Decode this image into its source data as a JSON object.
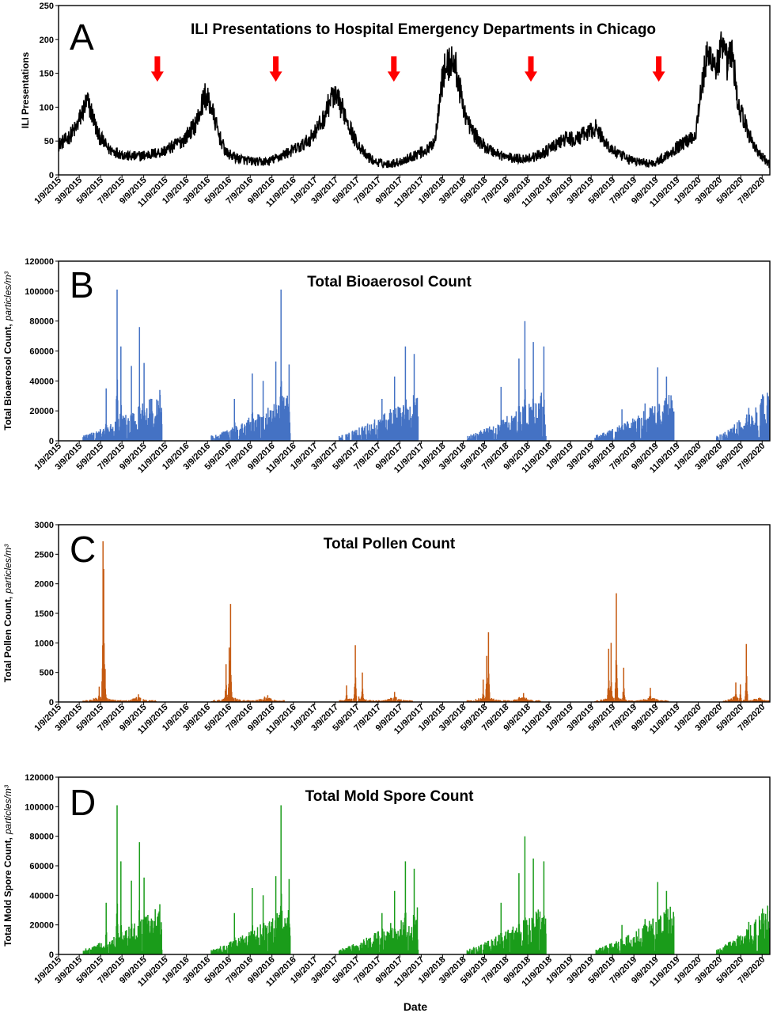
{
  "figure": {
    "xlabel": "Date",
    "date_ticks": [
      "1/9/2015",
      "3/9/2015",
      "5/9/2015",
      "7/9/2015",
      "9/9/2015",
      "11/9/2015",
      "1/9/2016",
      "3/9/2016",
      "5/9/2016",
      "7/9/2016",
      "9/9/2016",
      "11/9/2016",
      "1/9/2017",
      "3/9/2017",
      "5/9/2017",
      "7/9/2017",
      "9/9/2017",
      "11/9/2017",
      "1/9/2018",
      "3/9/2018",
      "5/9/2018",
      "7/9/2018",
      "9/9/2018",
      "11/9/2018",
      "1/9/2019",
      "3/9/2019",
      "5/9/2019",
      "7/9/2019",
      "9/9/2019",
      "11/9/2019",
      "1/9/2020",
      "3/9/2020",
      "5/9/2020",
      "7/9/2020"
    ]
  },
  "chart_data": [
    {
      "panel": "A",
      "type": "line",
      "title": "ILI Presentations to Hospital Emergency Departments in Chicago",
      "ylabel": "ILI Presentations",
      "ylabel_unit": "",
      "yticks": [
        "0",
        "50",
        "100",
        "150",
        "200",
        "250"
      ],
      "ylim": [
        0,
        250
      ],
      "xlim": [
        "2015-01-09",
        "2020-07-31"
      ],
      "color": "#000000",
      "grid": false,
      "series": [
        {
          "x": [
            "2015-01-09",
            "2015-02-01",
            "2015-03-01",
            "2015-03-20",
            "2015-04-01",
            "2015-04-15",
            "2015-05-01",
            "2015-06-01",
            "2015-07-01",
            "2015-08-01",
            "2015-09-01",
            "2015-10-01",
            "2015-11-01",
            "2015-12-01",
            "2016-01-01",
            "2016-01-20",
            "2016-02-01",
            "2016-02-15",
            "2016-03-01",
            "2016-03-20",
            "2016-04-10",
            "2016-05-01",
            "2016-06-01",
            "2016-07-01",
            "2016-08-01",
            "2016-09-01",
            "2016-10-01",
            "2016-11-01",
            "2016-12-01",
            "2016-12-25",
            "2017-01-15",
            "2017-02-01",
            "2017-02-15",
            "2017-03-01",
            "2017-03-20",
            "2017-04-10",
            "2017-05-01",
            "2017-06-01",
            "2017-07-01",
            "2017-08-01",
            "2017-09-01",
            "2017-10-01",
            "2017-11-01",
            "2017-12-01",
            "2017-12-20",
            "2018-01-01",
            "2018-01-15",
            "2018-02-01",
            "2018-02-15",
            "2018-03-01",
            "2018-03-20",
            "2018-04-10",
            "2018-05-01",
            "2018-06-01",
            "2018-07-01",
            "2018-08-01",
            "2018-09-01",
            "2018-10-01",
            "2018-11-01",
            "2018-12-01",
            "2019-01-01",
            "2019-01-20",
            "2019-02-10",
            "2019-03-01",
            "2019-03-20",
            "2019-04-10",
            "2019-05-01",
            "2019-06-01",
            "2019-07-01",
            "2019-08-01",
            "2019-09-01",
            "2019-10-01",
            "2019-11-01",
            "2019-12-01",
            "2020-01-01",
            "2020-01-15",
            "2020-02-01",
            "2020-02-15",
            "2020-03-01",
            "2020-03-15",
            "2020-04-01",
            "2020-04-15",
            "2020-05-01",
            "2020-06-01",
            "2020-07-01",
            "2020-07-31"
          ],
          "y": [
            45,
            52,
            70,
            95,
            108,
            90,
            60,
            38,
            32,
            27,
            28,
            31,
            34,
            42,
            52,
            65,
            72,
            90,
            118,
            100,
            60,
            32,
            25,
            21,
            19,
            20,
            27,
            35,
            42,
            52,
            68,
            80,
            100,
            118,
            105,
            85,
            55,
            30,
            19,
            16,
            18,
            24,
            32,
            38,
            55,
            120,
            155,
            168,
            160,
            120,
            80,
            60,
            45,
            35,
            28,
            24,
            24,
            27,
            35,
            45,
            55,
            50,
            58,
            62,
            70,
            55,
            40,
            28,
            22,
            18,
            17,
            25,
            38,
            48,
            60,
            120,
            170,
            175,
            160,
            185,
            165,
            180,
            105,
            60,
            30,
            15
          ]
        }
      ],
      "annotations": {
        "type": "arrow-down",
        "color": "#ff0000",
        "x": [
          "2015-10-18",
          "2016-09-20",
          "2017-08-23",
          "2018-09-18",
          "2019-09-18"
        ],
        "y": 175
      }
    },
    {
      "panel": "B",
      "type": "bar",
      "title": "Total Bioaerosol Count",
      "ylabel": "Total Bioaerosol Count,",
      "ylabel_unit": "particles/m³",
      "yticks": [
        "0",
        "20000",
        "40000",
        "60000",
        "80000",
        "100000",
        "120000"
      ],
      "ylim": [
        0,
        120000
      ],
      "xlim": [
        "2015-01-09",
        "2020-07-31"
      ],
      "color": "#4472c4",
      "grid": false,
      "seasons": [
        {
          "start": "2015-03-20",
          "end": "2015-10-31",
          "peaks": [
            {
              "date": "2015-05-25",
              "value": 35000
            },
            {
              "date": "2015-06-25",
              "value": 101000
            },
            {
              "date": "2015-07-06",
              "value": 63000
            },
            {
              "date": "2015-08-05",
              "value": 50000
            },
            {
              "date": "2015-08-28",
              "value": 76000
            },
            {
              "date": "2015-09-10",
              "value": 52000
            },
            {
              "date": "2015-10-25",
              "value": 34000
            }
          ]
        },
        {
          "start": "2016-03-20",
          "end": "2016-10-31",
          "peaks": [
            {
              "date": "2016-05-25",
              "value": 28000
            },
            {
              "date": "2016-07-15",
              "value": 45000
            },
            {
              "date": "2016-08-15",
              "value": 40000
            },
            {
              "date": "2016-09-20",
              "value": 53000
            },
            {
              "date": "2016-10-05",
              "value": 101000
            },
            {
              "date": "2016-10-28",
              "value": 51000
            }
          ]
        },
        {
          "start": "2017-03-20",
          "end": "2017-10-31",
          "peaks": [
            {
              "date": "2017-07-20",
              "value": 28000
            },
            {
              "date": "2017-08-25",
              "value": 43000
            },
            {
              "date": "2017-09-25",
              "value": 63000
            },
            {
              "date": "2017-10-20",
              "value": 58000
            }
          ]
        },
        {
          "start": "2018-03-20",
          "end": "2018-10-31",
          "peaks": [
            {
              "date": "2018-06-25",
              "value": 36000
            },
            {
              "date": "2018-08-15",
              "value": 55000
            },
            {
              "date": "2018-09-01",
              "value": 80000
            },
            {
              "date": "2018-09-25",
              "value": 66000
            },
            {
              "date": "2018-10-25",
              "value": 63000
            }
          ]
        },
        {
          "start": "2019-03-20",
          "end": "2019-10-31",
          "peaks": [
            {
              "date": "2019-06-05",
              "value": 21000
            },
            {
              "date": "2019-08-10",
              "value": 25000
            },
            {
              "date": "2019-09-15",
              "value": 49000
            },
            {
              "date": "2019-10-10",
              "value": 43000
            }
          ]
        },
        {
          "start": "2020-03-01",
          "end": "2020-07-31",
          "peaks": [
            {
              "date": "2020-06-01",
              "value": 22000
            },
            {
              "date": "2020-07-10",
              "value": 31000
            },
            {
              "date": "2020-07-25",
              "value": 25000
            }
          ]
        }
      ]
    },
    {
      "panel": "C",
      "type": "bar",
      "title": "Total Pollen Count",
      "ylabel": "Total Pollen Count,",
      "ylabel_unit": "particles/m³",
      "yticks": [
        "0",
        "500",
        "1000",
        "1500",
        "2000",
        "2500",
        "3000"
      ],
      "ylim": [
        0,
        3000
      ],
      "xlim": [
        "2015-01-09",
        "2020-07-31"
      ],
      "color": "#c55a11",
      "grid": false,
      "seasons": [
        {
          "start": "2015-03-20",
          "end": "2015-10-15",
          "peaks": [
            {
              "date": "2015-05-05",
              "value": 260
            },
            {
              "date": "2015-05-16",
              "value": 2720
            },
            {
              "date": "2015-05-18",
              "value": 2250
            },
            {
              "date": "2015-05-22",
              "value": 560
            },
            {
              "date": "2015-08-25",
              "value": 130
            }
          ]
        },
        {
          "start": "2016-03-20",
          "end": "2016-10-15",
          "peaks": [
            {
              "date": "2016-05-01",
              "value": 640
            },
            {
              "date": "2016-05-10",
              "value": 920
            },
            {
              "date": "2016-05-14",
              "value": 1660
            },
            {
              "date": "2016-08-28",
              "value": 115
            }
          ]
        },
        {
          "start": "2017-03-20",
          "end": "2017-10-15",
          "peaks": [
            {
              "date": "2017-04-10",
              "value": 280
            },
            {
              "date": "2017-05-05",
              "value": 960
            },
            {
              "date": "2017-05-25",
              "value": 500
            },
            {
              "date": "2017-08-25",
              "value": 170
            }
          ]
        },
        {
          "start": "2018-03-20",
          "end": "2018-10-15",
          "peaks": [
            {
              "date": "2018-05-05",
              "value": 380
            },
            {
              "date": "2018-05-15",
              "value": 780
            },
            {
              "date": "2018-05-20",
              "value": 1180
            },
            {
              "date": "2018-08-28",
              "value": 150
            }
          ]
        },
        {
          "start": "2019-03-20",
          "end": "2019-10-15",
          "peaks": [
            {
              "date": "2019-04-28",
              "value": 900
            },
            {
              "date": "2019-05-05",
              "value": 1000
            },
            {
              "date": "2019-05-20",
              "value": 1840
            },
            {
              "date": "2019-06-10",
              "value": 580
            },
            {
              "date": "2019-08-25",
              "value": 240
            }
          ]
        },
        {
          "start": "2020-03-20",
          "end": "2020-07-31",
          "peaks": [
            {
              "date": "2020-04-25",
              "value": 330
            },
            {
              "date": "2020-05-08",
              "value": 300
            },
            {
              "date": "2020-05-25",
              "value": 980
            }
          ]
        }
      ]
    },
    {
      "panel": "D",
      "type": "bar",
      "title": "Total Mold Spore Count",
      "ylabel": "Total Mold Spore Count,",
      "ylabel_unit": "particles/m³",
      "yticks": [
        "0",
        "20000",
        "40000",
        "60000",
        "80000",
        "100000",
        "120000"
      ],
      "ylim": [
        0,
        120000
      ],
      "xlim": [
        "2015-01-09",
        "2020-07-31"
      ],
      "color": "#1a9c1a",
      "grid": false,
      "seasons": [
        {
          "start": "2015-03-20",
          "end": "2015-10-31",
          "peaks": [
            {
              "date": "2015-05-25",
              "value": 35000
            },
            {
              "date": "2015-06-25",
              "value": 101000
            },
            {
              "date": "2015-07-06",
              "value": 63000
            },
            {
              "date": "2015-08-05",
              "value": 50000
            },
            {
              "date": "2015-08-28",
              "value": 76000
            },
            {
              "date": "2015-09-10",
              "value": 52000
            },
            {
              "date": "2015-10-25",
              "value": 34000
            }
          ]
        },
        {
          "start": "2016-03-20",
          "end": "2016-10-31",
          "peaks": [
            {
              "date": "2016-05-25",
              "value": 28000
            },
            {
              "date": "2016-07-15",
              "value": 45000
            },
            {
              "date": "2016-08-15",
              "value": 40000
            },
            {
              "date": "2016-09-20",
              "value": 53000
            },
            {
              "date": "2016-10-05",
              "value": 101000
            },
            {
              "date": "2016-10-28",
              "value": 51000
            }
          ]
        },
        {
          "start": "2017-03-20",
          "end": "2017-10-31",
          "peaks": [
            {
              "date": "2017-07-20",
              "value": 28000
            },
            {
              "date": "2017-08-25",
              "value": 43000
            },
            {
              "date": "2017-09-25",
              "value": 63000
            },
            {
              "date": "2017-10-20",
              "value": 58000
            }
          ]
        },
        {
          "start": "2018-03-20",
          "end": "2018-10-31",
          "peaks": [
            {
              "date": "2018-06-25",
              "value": 35000
            },
            {
              "date": "2018-08-15",
              "value": 55000
            },
            {
              "date": "2018-09-01",
              "value": 80000
            },
            {
              "date": "2018-09-25",
              "value": 65000
            },
            {
              "date": "2018-10-25",
              "value": 63000
            }
          ]
        },
        {
          "start": "2019-03-20",
          "end": "2019-10-31",
          "peaks": [
            {
              "date": "2019-06-05",
              "value": 20000
            },
            {
              "date": "2019-08-10",
              "value": 24000
            },
            {
              "date": "2019-09-15",
              "value": 49000
            },
            {
              "date": "2019-10-10",
              "value": 43000
            }
          ]
        },
        {
          "start": "2020-03-01",
          "end": "2020-07-31",
          "peaks": [
            {
              "date": "2020-06-01",
              "value": 22000
            },
            {
              "date": "2020-07-10",
              "value": 31000
            },
            {
              "date": "2020-07-25",
              "value": 25000
            }
          ]
        }
      ]
    }
  ]
}
